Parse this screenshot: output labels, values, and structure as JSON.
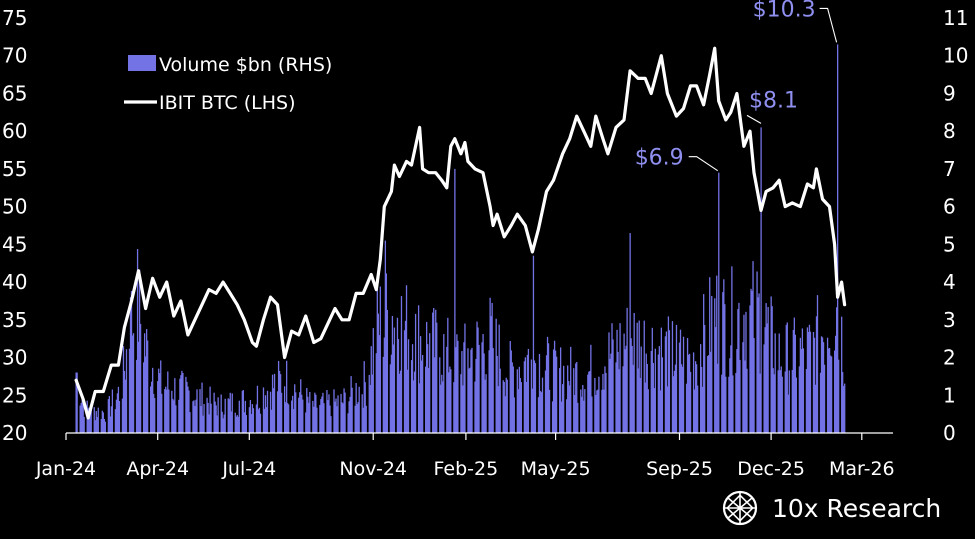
{
  "chart_data": {
    "type": "bar+line",
    "legend": {
      "placement": "top-left",
      "entries": [
        {
          "label": "Volume $bn (RHS)",
          "kind": "bar"
        },
        {
          "label": "IBIT BTC (LHS)",
          "kind": "line"
        }
      ]
    },
    "x_axis": {
      "ticks": [
        "Jan-24",
        "Apr-24",
        "Jul-24",
        "Nov-24",
        "Feb-25",
        "May-25",
        "Sep-25",
        "Dec-25",
        "Mar-26"
      ]
    },
    "y_left": {
      "min": 20,
      "max": 75,
      "ticks": [
        "20",
        "25",
        "30",
        "35",
        "40",
        "45",
        "50",
        "55",
        "60",
        "65",
        "70",
        "75"
      ]
    },
    "y_right": {
      "min": 0,
      "max": 11,
      "ticks": [
        "0",
        "1",
        "2",
        "3",
        "4",
        "5",
        "6",
        "7",
        "8",
        "9",
        "10",
        "11"
      ]
    },
    "series": [
      {
        "name": "IBIT BTC (LHS)",
        "type": "line",
        "axis": "left",
        "color": "#ffffff",
        "points": [
          [
            "2024-01-11",
            27
          ],
          [
            "2024-01-18",
            24.5
          ],
          [
            "2024-01-23",
            22
          ],
          [
            "2024-01-30",
            25.5
          ],
          [
            "2024-02-07",
            25.5
          ],
          [
            "2024-02-15",
            29
          ],
          [
            "2024-02-22",
            29
          ],
          [
            "2024-02-28",
            34
          ],
          [
            "2024-03-06",
            37.5
          ],
          [
            "2024-03-13",
            41.5
          ],
          [
            "2024-03-20",
            36.5
          ],
          [
            "2024-03-27",
            40.5
          ],
          [
            "2024-04-03",
            38
          ],
          [
            "2024-04-10",
            40
          ],
          [
            "2024-04-17",
            35.5
          ],
          [
            "2024-04-24",
            37.5
          ],
          [
            "2024-05-01",
            33
          ],
          [
            "2024-05-08",
            35
          ],
          [
            "2024-05-15",
            37
          ],
          [
            "2024-05-22",
            39
          ],
          [
            "2024-05-29",
            38.5
          ],
          [
            "2024-06-05",
            40
          ],
          [
            "2024-06-12",
            38.5
          ],
          [
            "2024-06-19",
            37
          ],
          [
            "2024-06-26",
            35
          ],
          [
            "2024-07-04",
            32
          ],
          [
            "2024-07-08",
            31.5
          ],
          [
            "2024-07-15",
            35
          ],
          [
            "2024-07-22",
            38
          ],
          [
            "2024-07-29",
            37
          ],
          [
            "2024-08-05",
            30
          ],
          [
            "2024-08-12",
            33.5
          ],
          [
            "2024-08-19",
            33
          ],
          [
            "2024-08-26",
            35.5
          ],
          [
            "2024-09-03",
            32
          ],
          [
            "2024-09-10",
            32.5
          ],
          [
            "2024-09-17",
            34.5
          ],
          [
            "2024-09-24",
            36.5
          ],
          [
            "2024-10-01",
            35
          ],
          [
            "2024-10-08",
            35
          ],
          [
            "2024-10-15",
            38.5
          ],
          [
            "2024-10-22",
            38.5
          ],
          [
            "2024-10-30",
            41
          ],
          [
            "2024-11-04",
            39
          ],
          [
            "2024-11-08",
            43
          ],
          [
            "2024-11-12",
            50
          ],
          [
            "2024-11-19",
            52
          ],
          [
            "2024-11-22",
            55.5
          ],
          [
            "2024-11-27",
            54
          ],
          [
            "2024-12-04",
            56
          ],
          [
            "2024-12-09",
            55.5
          ],
          [
            "2024-12-17",
            60.5
          ],
          [
            "2024-12-20",
            55
          ],
          [
            "2024-12-26",
            54.5
          ],
          [
            "2025-01-02",
            54.5
          ],
          [
            "2025-01-08",
            53.5
          ],
          [
            "2025-01-13",
            52.5
          ],
          [
            "2025-01-17",
            58
          ],
          [
            "2025-01-21",
            59
          ],
          [
            "2025-01-27",
            57
          ],
          [
            "2025-01-31",
            58.5
          ],
          [
            "2025-02-03",
            56
          ],
          [
            "2025-02-10",
            55
          ],
          [
            "2025-02-18",
            54.5
          ],
          [
            "2025-02-25",
            50
          ],
          [
            "2025-02-28",
            47.5
          ],
          [
            "2025-03-04",
            49
          ],
          [
            "2025-03-11",
            46
          ],
          [
            "2025-03-18",
            47.5
          ],
          [
            "2025-03-24",
            49
          ],
          [
            "2025-04-01",
            47.5
          ],
          [
            "2025-04-08",
            44
          ],
          [
            "2025-04-14",
            47
          ],
          [
            "2025-04-22",
            52
          ],
          [
            "2025-04-29",
            53.5
          ],
          [
            "2025-05-08",
            57
          ],
          [
            "2025-05-15",
            59
          ],
          [
            "2025-05-22",
            62
          ],
          [
            "2025-05-29",
            60
          ],
          [
            "2025-06-05",
            58
          ],
          [
            "2025-06-10",
            62
          ],
          [
            "2025-06-17",
            59
          ],
          [
            "2025-06-22",
            57
          ],
          [
            "2025-06-30",
            60.5
          ],
          [
            "2025-07-08",
            61.5
          ],
          [
            "2025-07-14",
            68
          ],
          [
            "2025-07-22",
            67
          ],
          [
            "2025-07-29",
            67
          ],
          [
            "2025-08-04",
            65
          ],
          [
            "2025-08-14",
            70
          ],
          [
            "2025-08-20",
            65
          ],
          [
            "2025-08-29",
            62
          ],
          [
            "2025-09-05",
            63
          ],
          [
            "2025-09-12",
            66
          ],
          [
            "2025-09-18",
            66
          ],
          [
            "2025-09-25",
            63.5
          ],
          [
            "2025-10-01",
            67.5
          ],
          [
            "2025-10-06",
            71
          ],
          [
            "2025-10-10",
            64
          ],
          [
            "2025-10-17",
            61.5
          ],
          [
            "2025-10-22",
            62.5
          ],
          [
            "2025-10-28",
            65
          ],
          [
            "2025-11-04",
            58
          ],
          [
            "2025-11-10",
            60
          ],
          [
            "2025-11-14",
            54.5
          ],
          [
            "2025-11-21",
            49.5
          ],
          [
            "2025-11-26",
            52
          ],
          [
            "2025-12-03",
            52.5
          ],
          [
            "2025-12-09",
            53.5
          ],
          [
            "2025-12-15",
            50
          ],
          [
            "2025-12-22",
            50.5
          ],
          [
            "2025-12-30",
            50
          ],
          [
            "2026-01-06",
            53
          ],
          [
            "2026-01-12",
            52.5
          ],
          [
            "2026-01-15",
            55
          ],
          [
            "2026-01-21",
            51
          ],
          [
            "2026-01-28",
            50
          ],
          [
            "2026-02-02",
            45
          ],
          [
            "2026-02-05",
            38
          ],
          [
            "2026-02-09",
            40
          ],
          [
            "2026-02-12",
            37
          ]
        ]
      },
      {
        "name": "Volume $bn (RHS)",
        "type": "bar",
        "axis": "right",
        "color": "#7373e6",
        "segments": [
          [
            "2024-01-11",
            1.8
          ],
          [
            "2024-01-20",
            0.7
          ],
          [
            "2024-02-10",
            0.6
          ],
          [
            "2024-02-25",
            1.3
          ],
          [
            "2024-03-05",
            3.2
          ],
          [
            "2024-03-12",
            3.8
          ],
          [
            "2024-03-20",
            2.5
          ],
          [
            "2024-04-05",
            1.4
          ],
          [
            "2024-05-01",
            1.2
          ],
          [
            "2024-06-01",
            0.8
          ],
          [
            "2024-07-05",
            1.0
          ],
          [
            "2024-08-05",
            1.6
          ],
          [
            "2024-09-01",
            0.8
          ],
          [
            "2024-10-01",
            0.9
          ],
          [
            "2024-10-25",
            1.5
          ],
          [
            "2024-11-06",
            3.2
          ],
          [
            "2024-11-20",
            3.5
          ],
          [
            "2024-12-15",
            2.8
          ],
          [
            "2025-01-15",
            2.3
          ],
          [
            "2025-02-01",
            2.2
          ],
          [
            "2025-02-25",
            2.8
          ],
          [
            "2025-03-15",
            1.8
          ],
          [
            "2025-04-08",
            2.2
          ],
          [
            "2025-05-01",
            1.8
          ],
          [
            "2025-06-01",
            1.7
          ],
          [
            "2025-07-15",
            2.8
          ],
          [
            "2025-08-15",
            2.4
          ],
          [
            "2025-09-15",
            2.1
          ],
          [
            "2025-10-06",
            3.5
          ],
          [
            "2025-10-20",
            3.2
          ],
          [
            "2025-11-05",
            3.6
          ],
          [
            "2025-11-20",
            3.4
          ],
          [
            "2025-12-10",
            2.2
          ],
          [
            "2026-01-10",
            2.4
          ],
          [
            "2026-02-05",
            3.8
          ],
          [
            "2026-02-12",
            2.2
          ]
        ],
        "spikes": [
          [
            "2024-03-05",
            3.6
          ],
          [
            "2024-11-13",
            5.1
          ],
          [
            "2025-01-21",
            7.0
          ],
          [
            "2025-04-09",
            4.7
          ],
          [
            "2025-07-14",
            5.3
          ],
          [
            "2025-10-10",
            6.9
          ],
          [
            "2025-11-21",
            8.1
          ],
          [
            "2026-02-05",
            10.3
          ]
        ]
      }
    ],
    "annotations": [
      {
        "text": "$6.9",
        "date": "2025-10-10",
        "value": 6.9
      },
      {
        "text": "$8.1",
        "date": "2025-11-21",
        "value": 8.1
      },
      {
        "text": "$10.3",
        "date": "2026-02-05",
        "value": 10.3
      }
    ]
  },
  "branding": {
    "name": "10x Research",
    "icon": "10x-logo-icon"
  }
}
